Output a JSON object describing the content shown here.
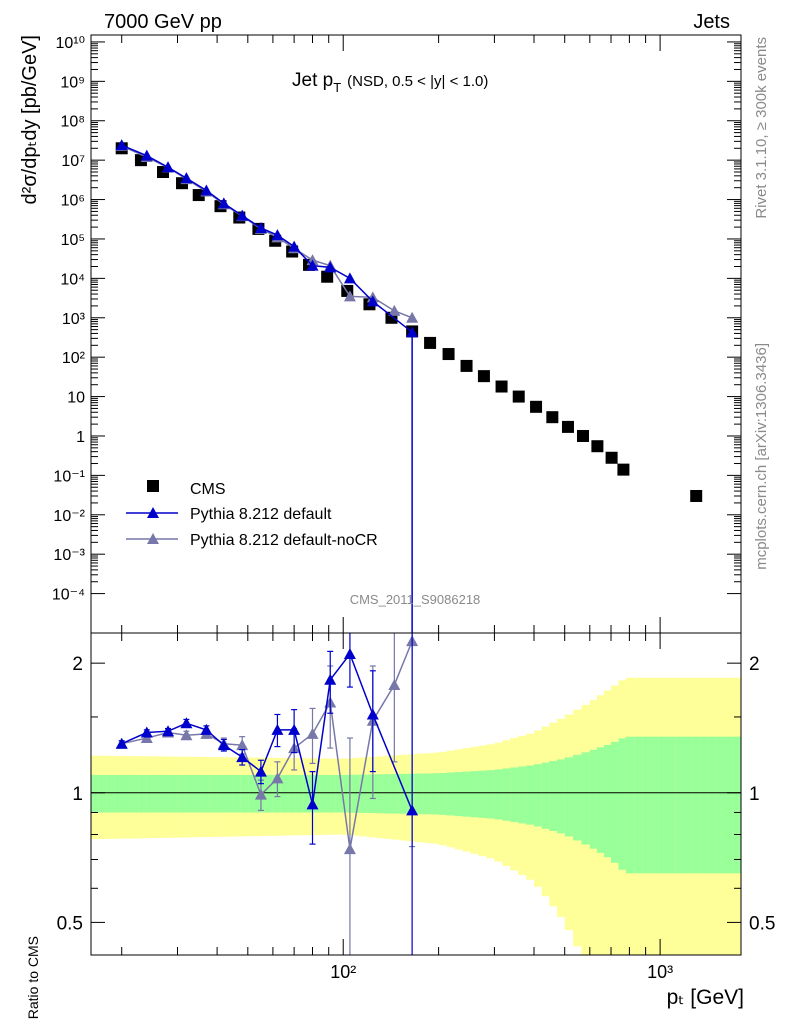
{
  "header": {
    "left": "7000 GeV pp",
    "right": "Jets"
  },
  "side": {
    "rivet": "Rivet 3.1.10, ≥ 300k events",
    "mcplots": "mcplots.cern.ch [arXiv:1306.3436]"
  },
  "plot_title": {
    "main": "Jet p",
    "sub": "T",
    "cut": "(NSD, 0.5 < |y| < 1.0)"
  },
  "watermark": "CMS_2011_S9086218",
  "legend": [
    {
      "label": "CMS",
      "color": "#000000",
      "marker": "square"
    },
    {
      "label": "Pythia 8.212 default",
      "color": "#0000cc",
      "marker": "triangle"
    },
    {
      "label": "Pythia 8.212 default-noCR",
      "color": "#7777aa",
      "marker": "triangle"
    }
  ],
  "axis_titles": {
    "ylabel_main": "d²σ/dpₜdy [pb/GeV]",
    "ylabel_ratio": "Ratio to CMS",
    "xlabel": "pₜ [GeV]"
  },
  "chart_data": [
    {
      "type": "scatter",
      "x_scale": "log",
      "y_scale": "log",
      "xlim": [
        16,
        1800
      ],
      "ylim": [
        1e-05,
        15000000000.0
      ],
      "x_ticks": [
        100,
        1000
      ],
      "x_tick_labels": [
        "10²",
        "10³"
      ],
      "y_ticks": [
        0.0001,
        0.001,
        0.01,
        0.1,
        1,
        10,
        100,
        1000.0,
        10000.0,
        100000.0,
        1000000.0,
        10000000.0,
        100000000.0,
        1000000000.0,
        10000000000.0
      ],
      "y_tick_labels": [
        "10⁻⁴",
        "10⁻³",
        "10⁻²",
        "10⁻¹",
        "1",
        "10",
        "10²",
        "10³",
        "10⁴",
        "10⁵",
        "10⁶",
        "10⁷",
        "10⁸",
        "10⁹",
        "10¹⁰"
      ],
      "series": [
        {
          "name": "CMS",
          "x": [
            20,
            23,
            27,
            31,
            35,
            41,
            47,
            54,
            61,
            69,
            78,
            89,
            103,
            121,
            142,
            165,
            188,
            215,
            245,
            278,
            316,
            358,
            406,
            457,
            512,
            571,
            634,
            703,
            766,
            1300
          ],
          "y": [
            20000000.0,
            10000000.0,
            5000000.0,
            2600000.0,
            1300000.0,
            680000.0,
            350000.0,
            180000.0,
            90000.0,
            48000.0,
            22000.0,
            11000.0,
            4800.0,
            2200.0,
            1000.0,
            450.0,
            230.0,
            120.0,
            60,
            33,
            18,
            10,
            5.5,
            3.0,
            1.7,
            1.0,
            0.55,
            0.28,
            0.14,
            0.03
          ]
        },
        {
          "name": "Pythia 8.212 default",
          "x": [
            20,
            24,
            28,
            32,
            37,
            42,
            48,
            55,
            62,
            70,
            80,
            91,
            105,
            124,
            145,
            165
          ],
          "y": [
            24000000.0,
            13000000.0,
            6600000.0,
            3500000.0,
            1700000.0,
            800000.0,
            390000.0,
            190000.0,
            125000.0,
            64000.0,
            21000.0,
            19000.0,
            10000.0,
            2600.0,
            null,
            430
          ],
          "ratio": [
            1.3,
            1.38,
            1.39,
            1.45,
            1.4,
            1.29,
            1.21,
            1.12,
            1.4,
            1.4,
            0.94,
            1.83,
            2.1,
            1.52,
            null,
            0.91
          ],
          "ratio_err": [
            0.02,
            0.02,
            0.02,
            0.03,
            0.03,
            0.04,
            0.05,
            0.07,
            0.12,
            0.16,
            0.18,
            0.3,
            0.34,
            0.4,
            null,
            2.0
          ]
        },
        {
          "name": "Pythia 8.212 default-noCR",
          "x": [
            20,
            24,
            28,
            32,
            37,
            42,
            48,
            55,
            62,
            70,
            80,
            91,
            105,
            124,
            145,
            165
          ],
          "y": [
            23000000.0,
            12000000.0,
            6500000.0,
            3300000.0,
            1600000.0,
            760000.0,
            380000.0,
            180000.0,
            110000.0,
            58000.0,
            29000.0,
            21000.0,
            3500.0,
            3300.0,
            1500.0,
            1000.0
          ],
          "ratio": [
            1.3,
            1.34,
            1.38,
            1.36,
            1.37,
            1.3,
            1.29,
            0.99,
            1.08,
            1.27,
            1.37,
            1.62,
            0.74,
            1.47,
            1.78,
            2.25
          ],
          "ratio_err": [
            0.02,
            0.02,
            0.02,
            0.03,
            0.03,
            0.04,
            0.06,
            0.08,
            0.1,
            0.14,
            0.2,
            0.35,
            0.6,
            0.5,
            0.6,
            1.5
          ]
        }
      ]
    },
    {
      "type": "line",
      "x_scale": "log",
      "y_scale": "log",
      "xlim": [
        16,
        1800
      ],
      "ylim": [
        0.42,
        2.35
      ],
      "y_ticks": [
        0.5,
        1,
        2
      ],
      "y_tick_labels": [
        "0.5",
        "1",
        "2"
      ],
      "bands": {
        "green_color": "#99ff99",
        "yellow_color": "#ffff99",
        "x_edges": [
          16,
          100,
          200,
          300,
          400,
          500,
          600,
          700,
          780,
          1800
        ],
        "green_half": [
          0.1,
          0.1,
          0.11,
          0.13,
          0.16,
          0.2,
          0.25,
          0.3,
          0.35,
          0.35
        ],
        "yellow_half": [
          0.22,
          0.2,
          0.24,
          0.3,
          0.38,
          0.5,
          0.62,
          0.75,
          0.85,
          0.85
        ]
      }
    }
  ]
}
